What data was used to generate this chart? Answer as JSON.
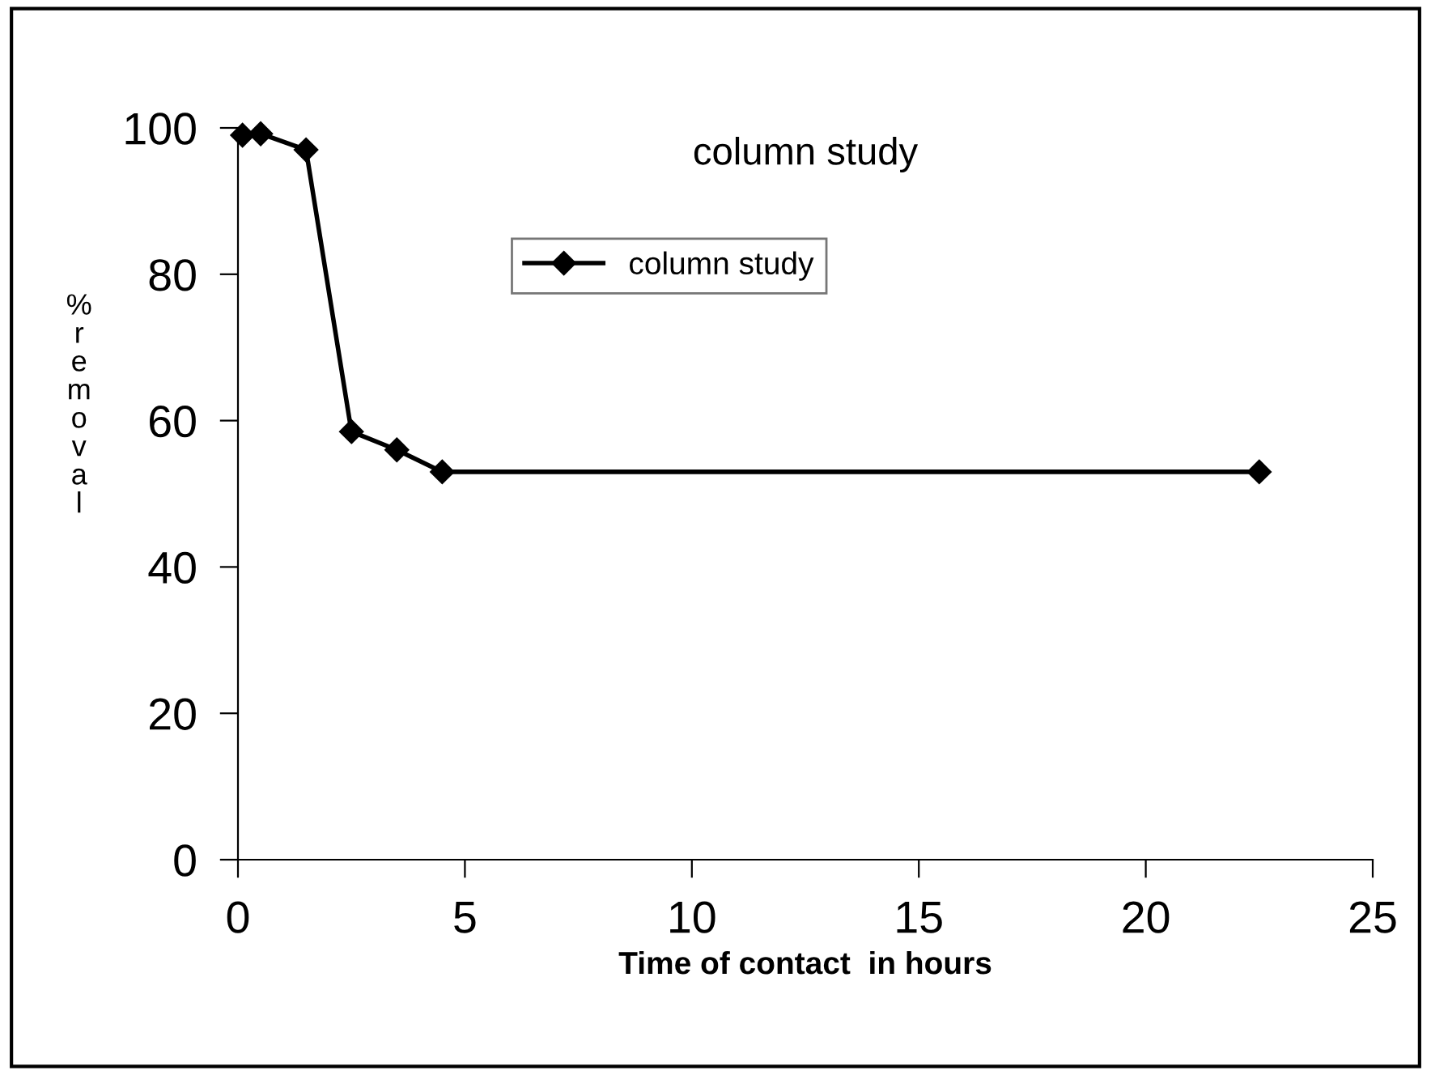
{
  "chart_data": {
    "type": "line",
    "title": "column study",
    "xlabel": "Time of contact  in hours",
    "ylabel": "% removal",
    "x": [
      0.1,
      0.5,
      1.5,
      2.5,
      3.5,
      4.5,
      22.5
    ],
    "series": [
      {
        "name": "column study",
        "color": "#000000",
        "values": [
          99,
          99.2,
          97,
          58.5,
          56,
          53,
          53
        ]
      }
    ],
    "xlim": [
      0,
      25
    ],
    "xticks": [
      0,
      5,
      10,
      15,
      20,
      25
    ],
    "ylim": [
      0,
      100
    ],
    "yticks": [
      0,
      20,
      40,
      60,
      80,
      100
    ],
    "marker": "diamond",
    "line_style": "solid",
    "legend": "top",
    "grid": false
  }
}
